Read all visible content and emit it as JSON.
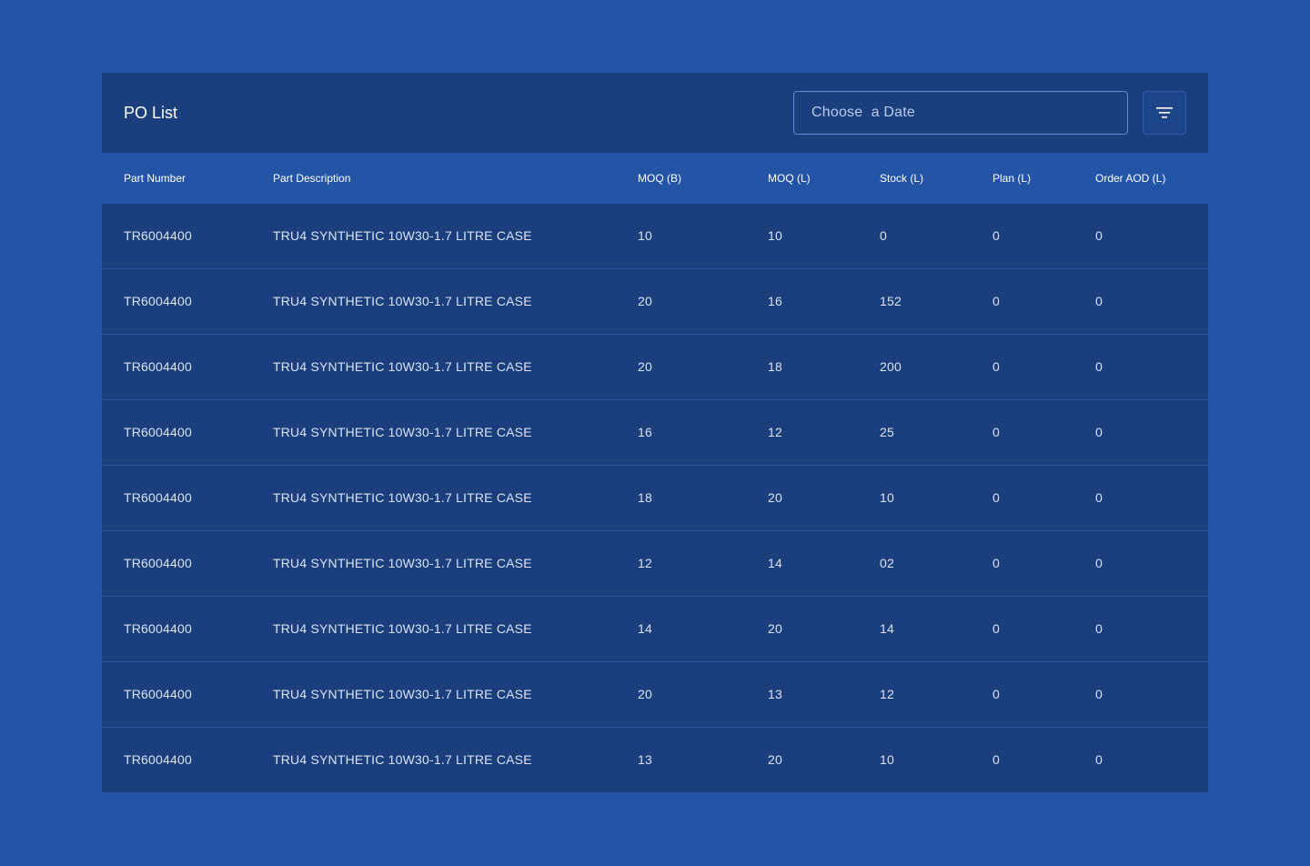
{
  "header": {
    "title": "PO List",
    "date_placeholder": "Choose  a Date",
    "filter_icon": "filter-lines-icon"
  },
  "table": {
    "columns": [
      "Part Number",
      "Part Description",
      "MOQ (B)",
      "MOQ (L)",
      "Stock (L)",
      "Plan (L)",
      "Order AOD (L)"
    ],
    "rows": [
      [
        "TR6004400",
        "TRU4 SYNTHETIC 10W30-1.7 LITRE CASE",
        "10",
        "10",
        "0",
        "0",
        "0"
      ],
      [
        "TR6004400",
        "TRU4 SYNTHETIC 10W30-1.7 LITRE CASE",
        "20",
        "16",
        "152",
        "0",
        "0"
      ],
      [
        "TR6004400",
        "TRU4 SYNTHETIC 10W30-1.7 LITRE CASE",
        "20",
        "18",
        "200",
        "0",
        "0"
      ],
      [
        "TR6004400",
        "TRU4 SYNTHETIC 10W30-1.7 LITRE CASE",
        "16",
        "12",
        "25",
        "0",
        "0"
      ],
      [
        "TR6004400",
        "TRU4 SYNTHETIC 10W30-1.7 LITRE CASE",
        "18",
        "20",
        "10",
        "0",
        "0"
      ],
      [
        "TR6004400",
        "TRU4 SYNTHETIC 10W30-1.7 LITRE CASE",
        "12",
        "14",
        "02",
        "0",
        "0"
      ],
      [
        "TR6004400",
        "TRU4 SYNTHETIC 10W30-1.7 LITRE CASE",
        "14",
        "20",
        "14",
        "0",
        "0"
      ],
      [
        "TR6004400",
        "TRU4 SYNTHETIC 10W30-1.7 LITRE CASE",
        "20",
        "13",
        "12",
        "0",
        "0"
      ],
      [
        "TR6004400",
        "TRU4 SYNTHETIC 10W30-1.7 LITRE CASE",
        "13",
        "20",
        "10",
        "0",
        "0"
      ]
    ]
  },
  "colors": {
    "page_background": "#2354a5",
    "card_background": "#1b3f7d",
    "header_row_background": "#2354a5",
    "row_divider": "#2a56a3",
    "input_border": "#5f8ae0"
  }
}
